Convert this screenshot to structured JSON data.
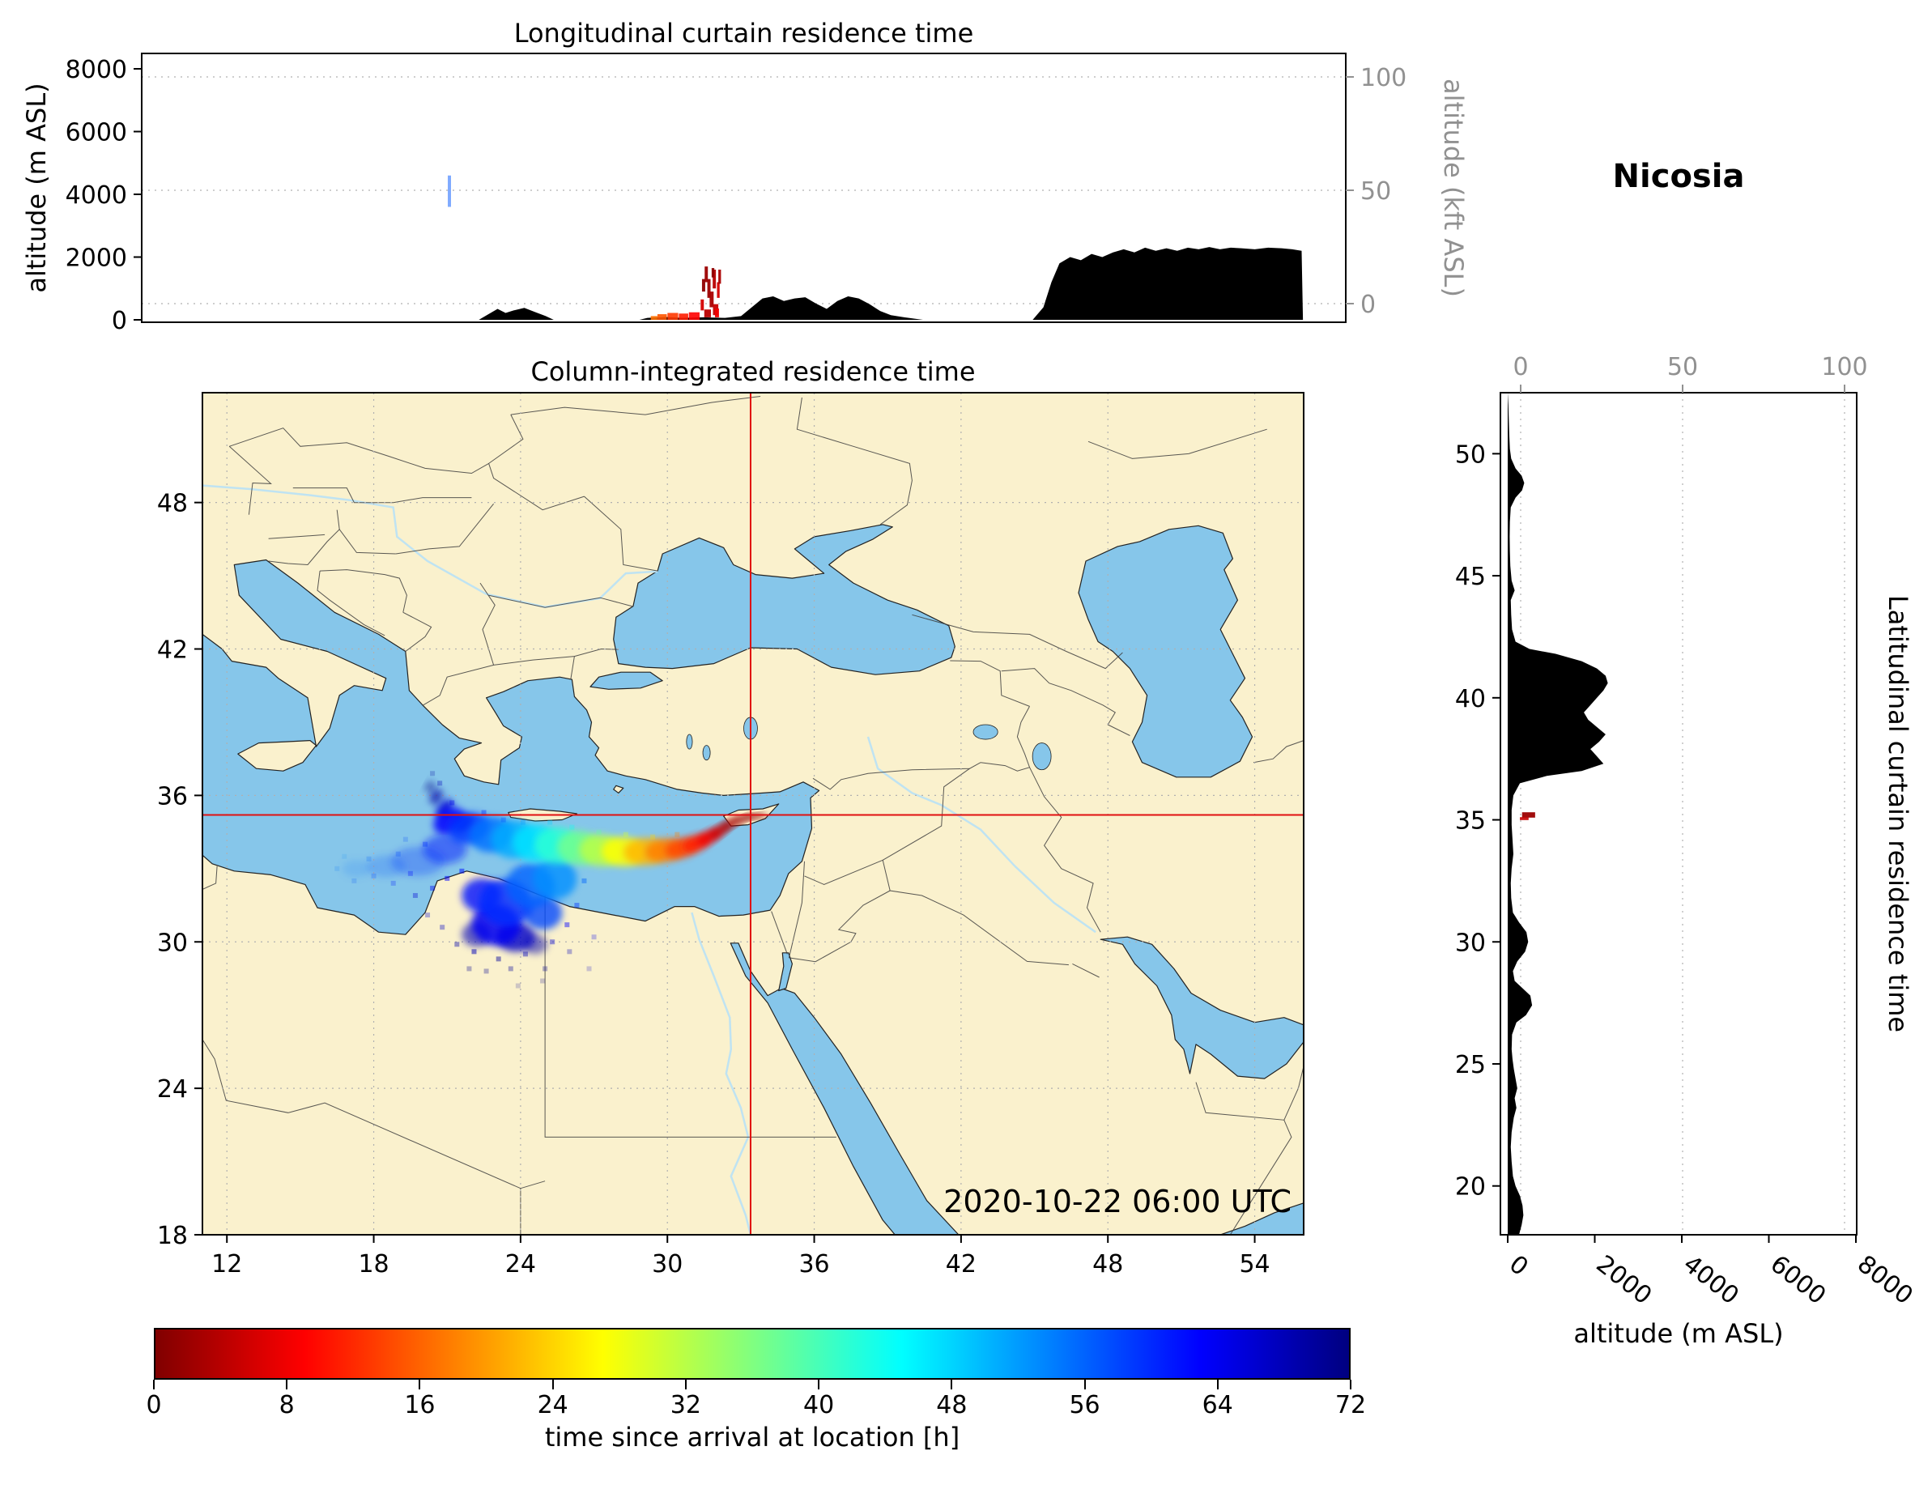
{
  "station": "Nicosia",
  "timestamp": "2020-10-22 06:00 UTC",
  "colors": {
    "sea": "#86C6EA",
    "land": "#FAF1CD",
    "terrain": "#000000",
    "crosshair": "#E01010",
    "grid": "#B0B0B0",
    "axis_gray": "#919191",
    "border_line": "#3C3C3C",
    "river": "#BFE3F2"
  },
  "top_panel": {
    "title": "Longitudinal curtain residence time",
    "ylabel_left": "altitude (m ASL)",
    "ylabel_right": "altitude (kft ASL)",
    "yticks_left": [
      0,
      2000,
      4000,
      6000,
      8000
    ],
    "yticks_right": [
      0,
      50,
      100
    ]
  },
  "map_panel": {
    "title": "Column-integrated residence time",
    "xticks": [
      12,
      18,
      24,
      30,
      36,
      42,
      48,
      54
    ],
    "yticks": [
      18,
      24,
      30,
      36,
      42,
      48
    ]
  },
  "right_panel": {
    "label": "Latitudinal curtain residence time",
    "xlabel": "altitude (m ASL)",
    "xticks_bottom": [
      0,
      2000,
      4000,
      6000,
      8000
    ],
    "xticks_top": [
      0,
      50,
      100
    ],
    "yticks": [
      20,
      25,
      30,
      35,
      40,
      45,
      50
    ]
  },
  "colorbar": {
    "label": "time since arrival at location [h]",
    "ticks": [
      0,
      8,
      16,
      24,
      32,
      40,
      48,
      56,
      64,
      72
    ],
    "vmin": 0,
    "vmax": 72,
    "colormap": "jet_r"
  },
  "chart_data": {
    "type": "heatmap",
    "subtype": "residence-time-triptych",
    "colormap": "jet_r",
    "time_range_h": [
      0,
      72
    ],
    "lon_range": [
      11,
      56
    ],
    "lat_range": [
      18,
      52.5
    ],
    "alt_range_m": [
      0,
      8000
    ],
    "receptor": {
      "name": "Nicosia",
      "lon": 33.4,
      "lat": 35.2
    },
    "longitudinal_curtain": {
      "terrain_profile_lon_alt": [
        [
          11,
          0
        ],
        [
          23.6,
          0
        ],
        [
          24.0,
          200
        ],
        [
          24.3,
          350
        ],
        [
          24.6,
          220
        ],
        [
          24.9,
          300
        ],
        [
          25.3,
          380
        ],
        [
          25.7,
          250
        ],
        [
          26.1,
          120
        ],
        [
          26.4,
          0
        ],
        [
          29.6,
          0
        ],
        [
          29.9,
          60
        ],
        [
          30.6,
          90
        ],
        [
          31.2,
          60
        ],
        [
          32.0,
          80
        ],
        [
          32.8,
          60
        ],
        [
          33.4,
          120
        ],
        [
          33.8,
          400
        ],
        [
          34.2,
          680
        ],
        [
          34.6,
          750
        ],
        [
          35.0,
          600
        ],
        [
          35.4,
          680
        ],
        [
          35.8,
          720
        ],
        [
          36.2,
          520
        ],
        [
          36.6,
          350
        ],
        [
          37.0,
          600
        ],
        [
          37.4,
          750
        ],
        [
          37.8,
          680
        ],
        [
          38.2,
          500
        ],
        [
          38.6,
          280
        ],
        [
          39.0,
          150
        ],
        [
          39.5,
          80
        ],
        [
          40.2,
          0
        ],
        [
          44.3,
          0
        ],
        [
          44.7,
          400
        ],
        [
          45.0,
          1200
        ],
        [
          45.3,
          1800
        ],
        [
          45.7,
          2000
        ],
        [
          46.1,
          1900
        ],
        [
          46.5,
          2100
        ],
        [
          46.9,
          2000
        ],
        [
          47.3,
          2150
        ],
        [
          47.7,
          2250
        ],
        [
          48.1,
          2150
        ],
        [
          48.5,
          2300
        ],
        [
          48.9,
          2200
        ],
        [
          49.3,
          2280
        ],
        [
          49.7,
          2200
        ],
        [
          50.1,
          2300
        ],
        [
          50.5,
          2250
        ],
        [
          50.9,
          2320
        ],
        [
          51.3,
          2250
        ],
        [
          51.7,
          2300
        ],
        [
          52.1,
          2280
        ],
        [
          52.6,
          2250
        ],
        [
          53.1,
          2300
        ],
        [
          53.6,
          2280
        ],
        [
          54.0,
          2250
        ],
        [
          54.35,
          2200
        ],
        [
          54.4,
          0
        ],
        [
          56,
          0
        ]
      ],
      "residence_cells": [
        [
          22.5,
          3600,
          0.12,
          1000,
          57,
          0.5
        ],
        [
          32.0,
          900,
          0.12,
          400,
          1,
          0.95
        ],
        [
          32.1,
          1200,
          0.12,
          500,
          2,
          0.95
        ],
        [
          32.2,
          700,
          0.12,
          600,
          2,
          0.95
        ],
        [
          32.3,
          400,
          0.15,
          500,
          3,
          0.95
        ],
        [
          32.4,
          1000,
          0.12,
          600,
          4,
          0.95
        ],
        [
          32.45,
          150,
          0.2,
          350,
          5,
          0.95
        ],
        [
          32.55,
          700,
          0.1,
          500,
          6,
          0.95
        ],
        [
          32.6,
          1150,
          0.1,
          450,
          3,
          0.95
        ],
        [
          31.95,
          300,
          0.12,
          350,
          6,
          0.95
        ],
        [
          32.15,
          80,
          0.25,
          250,
          4,
          0.95
        ],
        [
          32.35,
          1350,
          0.1,
          300,
          1,
          0.95
        ],
        [
          32.5,
          80,
          0.15,
          280,
          8,
          0.95
        ],
        [
          30.15,
          0,
          0.25,
          120,
          17,
          0.9
        ],
        [
          30.45,
          0,
          0.35,
          180,
          15,
          0.9
        ],
        [
          30.85,
          0,
          0.4,
          220,
          13,
          0.9
        ],
        [
          31.25,
          0,
          0.35,
          200,
          11,
          0.9
        ],
        [
          31.65,
          0,
          0.4,
          240,
          9,
          0.9
        ]
      ]
    },
    "latitudinal_curtain": {
      "terrain_profile_lat_alt": [
        [
          18.0,
          260
        ],
        [
          18.4,
          320
        ],
        [
          18.8,
          360
        ],
        [
          19.2,
          340
        ],
        [
          19.6,
          280
        ],
        [
          20.0,
          180
        ],
        [
          20.4,
          120
        ],
        [
          21.0,
          90
        ],
        [
          21.6,
          70
        ],
        [
          22.2,
          90
        ],
        [
          22.8,
          140
        ],
        [
          23.2,
          200
        ],
        [
          23.6,
          160
        ],
        [
          24.0,
          220
        ],
        [
          24.4,
          180
        ],
        [
          24.8,
          140
        ],
        [
          25.2,
          110
        ],
        [
          25.6,
          90
        ],
        [
          26.2,
          100
        ],
        [
          26.7,
          200
        ],
        [
          27.0,
          420
        ],
        [
          27.4,
          560
        ],
        [
          27.8,
          520
        ],
        [
          28.1,
          340
        ],
        [
          28.4,
          160
        ],
        [
          28.8,
          120
        ],
        [
          29.2,
          220
        ],
        [
          29.6,
          400
        ],
        [
          30.0,
          470
        ],
        [
          30.4,
          430
        ],
        [
          30.8,
          260
        ],
        [
          31.2,
          120
        ],
        [
          31.8,
          80
        ],
        [
          32.4,
          70
        ],
        [
          33.0,
          90
        ],
        [
          33.6,
          130
        ],
        [
          34.2,
          110
        ],
        [
          34.8,
          90
        ],
        [
          35.4,
          90
        ],
        [
          36.0,
          130
        ],
        [
          36.5,
          280
        ],
        [
          36.8,
          900
        ],
        [
          37.0,
          1700
        ],
        [
          37.3,
          2200
        ],
        [
          37.6,
          2050
        ],
        [
          37.9,
          1900
        ],
        [
          38.2,
          2100
        ],
        [
          38.5,
          2250
        ],
        [
          38.8,
          2050
        ],
        [
          39.1,
          1850
        ],
        [
          39.4,
          1750
        ],
        [
          39.7,
          1900
        ],
        [
          40.0,
          2050
        ],
        [
          40.3,
          2200
        ],
        [
          40.6,
          2300
        ],
        [
          40.9,
          2250
        ],
        [
          41.2,
          2050
        ],
        [
          41.5,
          1700
        ],
        [
          41.8,
          1100
        ],
        [
          42.0,
          500
        ],
        [
          42.3,
          180
        ],
        [
          42.8,
          100
        ],
        [
          43.4,
          80
        ],
        [
          44.0,
          70
        ],
        [
          44.4,
          160
        ],
        [
          44.8,
          90
        ],
        [
          45.4,
          60
        ],
        [
          46.0,
          50
        ],
        [
          46.6,
          45
        ],
        [
          47.2,
          50
        ],
        [
          47.8,
          70
        ],
        [
          48.2,
          180
        ],
        [
          48.5,
          330
        ],
        [
          48.8,
          380
        ],
        [
          49.1,
          320
        ],
        [
          49.4,
          180
        ],
        [
          49.8,
          80
        ],
        [
          50.2,
          50
        ],
        [
          50.8,
          35
        ],
        [
          51.4,
          25
        ],
        [
          52.0,
          15
        ],
        [
          52.5,
          0
        ]
      ],
      "residence_cells": [
        [
          35.2,
          330,
          0.22,
          300,
          2,
          0.95
        ],
        [
          35.05,
          280,
          0.12,
          200,
          5,
          0.9
        ]
      ]
    },
    "map_plume": {
      "blobs": [
        [
          33.6,
          35.15,
          0.45,
          0.1,
          -8,
          0.5,
          0.95
        ],
        [
          33.1,
          35.05,
          0.4,
          0.12,
          -20,
          2,
          0.95
        ],
        [
          32.6,
          34.85,
          0.45,
          0.16,
          -30,
          3,
          0.9
        ],
        [
          32.15,
          34.55,
          0.5,
          0.2,
          -35,
          5,
          0.9
        ],
        [
          31.7,
          34.3,
          0.55,
          0.25,
          -30,
          8,
          0.9
        ],
        [
          31.2,
          34.05,
          0.6,
          0.32,
          -22,
          11,
          0.9
        ],
        [
          30.6,
          33.85,
          0.7,
          0.4,
          -14,
          14,
          0.88
        ],
        [
          29.9,
          33.75,
          0.8,
          0.48,
          -8,
          18,
          0.88
        ],
        [
          29.1,
          33.7,
          0.88,
          0.55,
          -3,
          22,
          0.86
        ],
        [
          28.2,
          33.7,
          0.9,
          0.6,
          2,
          27,
          0.85
        ],
        [
          27.3,
          33.75,
          0.9,
          0.65,
          4,
          32,
          0.85
        ],
        [
          26.4,
          33.85,
          0.9,
          0.7,
          5,
          37,
          0.85
        ],
        [
          25.5,
          33.95,
          0.92,
          0.75,
          3,
          42,
          0.85
        ],
        [
          24.6,
          34.05,
          0.92,
          0.78,
          0,
          47,
          0.85
        ],
        [
          23.7,
          34.2,
          0.9,
          0.78,
          -4,
          51,
          0.85
        ],
        [
          22.8,
          34.4,
          0.9,
          0.72,
          -9,
          55,
          0.85
        ],
        [
          21.9,
          34.65,
          0.85,
          0.62,
          -16,
          59,
          0.85
        ],
        [
          21.1,
          34.95,
          0.7,
          0.5,
          -28,
          63,
          0.85
        ],
        [
          21.7,
          34.85,
          0.45,
          0.3,
          -30,
          66,
          0.9
        ],
        [
          20.9,
          35.45,
          0.45,
          0.28,
          -55,
          66,
          0.8
        ],
        [
          20.55,
          35.95,
          0.35,
          0.22,
          -60,
          69,
          0.7
        ],
        [
          20.3,
          36.35,
          0.25,
          0.18,
          -62,
          71,
          0.5
        ],
        [
          25.4,
          32.6,
          0.9,
          0.85,
          10,
          53,
          0.8
        ],
        [
          24.4,
          32.3,
          1.0,
          0.9,
          10,
          56,
          0.8
        ],
        [
          23.4,
          31.6,
          1.1,
          0.95,
          15,
          60,
          0.85
        ],
        [
          23.0,
          30.7,
          1.0,
          0.85,
          10,
          64,
          0.85
        ],
        [
          23.8,
          30.2,
          0.8,
          0.6,
          0,
          67,
          0.8
        ],
        [
          22.4,
          31.9,
          0.8,
          0.7,
          0,
          62,
          0.8
        ],
        [
          24.9,
          31.2,
          0.8,
          0.7,
          5,
          58,
          0.8
        ],
        [
          22.2,
          30.3,
          0.6,
          0.5,
          0,
          68,
          0.6
        ],
        [
          24.6,
          29.9,
          0.5,
          0.4,
          0,
          69,
          0.5
        ],
        [
          19.8,
          33.3,
          1.1,
          0.6,
          0,
          60,
          0.3
        ],
        [
          18.5,
          33.1,
          0.8,
          0.45,
          0,
          58,
          0.22
        ],
        [
          17.3,
          33.0,
          0.6,
          0.35,
          0,
          56,
          0.15
        ],
        [
          20.9,
          33.8,
          0.9,
          0.6,
          0,
          61,
          0.5
        ]
      ],
      "speckles": [
        [
          21.0,
          32.6,
          63,
          0.5
        ],
        [
          20.4,
          32.2,
          64,
          0.4
        ],
        [
          19.7,
          31.9,
          66,
          0.35
        ],
        [
          21.6,
          32.9,
          62,
          0.5
        ],
        [
          22.1,
          29.6,
          68,
          0.5
        ],
        [
          21.4,
          29.9,
          69,
          0.4
        ],
        [
          23.1,
          29.3,
          70,
          0.45
        ],
        [
          24.2,
          29.5,
          68,
          0.4
        ],
        [
          25.3,
          30.0,
          66,
          0.4
        ],
        [
          25.9,
          30.7,
          63,
          0.45
        ],
        [
          26.3,
          31.5,
          60,
          0.4
        ],
        [
          25.0,
          28.9,
          71,
          0.3
        ],
        [
          23.6,
          28.9,
          70,
          0.35
        ],
        [
          22.6,
          28.8,
          71,
          0.3
        ],
        [
          20.8,
          30.6,
          67,
          0.35
        ],
        [
          20.2,
          31.1,
          66,
          0.3
        ],
        [
          19.5,
          32.8,
          62,
          0.3
        ],
        [
          18.8,
          32.4,
          61,
          0.25
        ],
        [
          18.0,
          32.7,
          59,
          0.2
        ],
        [
          17.2,
          32.5,
          57,
          0.18
        ],
        [
          16.5,
          33.0,
          55,
          0.15
        ],
        [
          26.6,
          32.5,
          56,
          0.45
        ],
        [
          26.0,
          29.6,
          68,
          0.3
        ],
        [
          27.0,
          30.2,
          64,
          0.25
        ],
        [
          21.9,
          28.9,
          71,
          0.3
        ],
        [
          19.0,
          33.6,
          58,
          0.25
        ],
        [
          17.8,
          33.4,
          56,
          0.2
        ],
        [
          16.8,
          33.5,
          54,
          0.12
        ],
        [
          20.1,
          34.0,
          60,
          0.35
        ],
        [
          19.3,
          34.2,
          58,
          0.2
        ],
        [
          22.5,
          35.3,
          60,
          0.4
        ],
        [
          23.3,
          35.0,
          57,
          0.35
        ],
        [
          24.1,
          34.9,
          52,
          0.3
        ],
        [
          21.2,
          35.7,
          64,
          0.35
        ],
        [
          20.7,
          36.5,
          68,
          0.3
        ],
        [
          20.4,
          36.9,
          70,
          0.22
        ],
        [
          25.2,
          34.9,
          48,
          0.3
        ],
        [
          26.1,
          34.7,
          44,
          0.3
        ],
        [
          27.2,
          34.5,
          38,
          0.3
        ],
        [
          28.3,
          34.4,
          30,
          0.3
        ],
        [
          29.4,
          34.3,
          24,
          0.3
        ],
        [
          30.4,
          34.4,
          18,
          0.3
        ],
        [
          26.8,
          28.9,
          67,
          0.2
        ],
        [
          24.9,
          28.4,
          71,
          0.2
        ],
        [
          23.9,
          28.2,
          71,
          0.18
        ]
      ]
    }
  }
}
